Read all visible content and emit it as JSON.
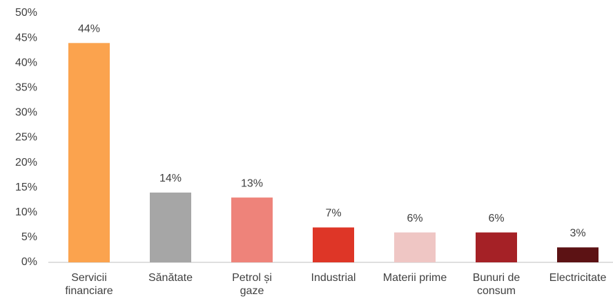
{
  "chart_data": {
    "type": "bar",
    "categories": [
      "Servicii\nfinanciare",
      "Sănătate",
      "Petrol și\ngaze",
      "Industrial",
      "Materii prime",
      "Bunuri de\nconsum",
      "Electricitate"
    ],
    "values": [
      44,
      14,
      13,
      7,
      6,
      6,
      3
    ],
    "value_labels": [
      "44%",
      "14%",
      "13%",
      "7%",
      "6%",
      "6%",
      "3%"
    ],
    "colors": [
      "#fba34e",
      "#a6a6a6",
      "#ee837a",
      "#de3627",
      "#efc6c4",
      "#a52126",
      "#5c1214"
    ],
    "ylim": [
      0,
      50
    ],
    "yticks": [
      {
        "value": 0,
        "label": "0%"
      },
      {
        "value": 5,
        "label": "5%"
      },
      {
        "value": 10,
        "label": "10%"
      },
      {
        "value": 15,
        "label": "15%"
      },
      {
        "value": 20,
        "label": "20%"
      },
      {
        "value": 25,
        "label": "25%"
      },
      {
        "value": 30,
        "label": "30%"
      },
      {
        "value": 35,
        "label": "35%"
      },
      {
        "value": 40,
        "label": "40%"
      },
      {
        "value": 45,
        "label": "45%"
      },
      {
        "value": 50,
        "label": "50%"
      }
    ],
    "grid": false
  }
}
